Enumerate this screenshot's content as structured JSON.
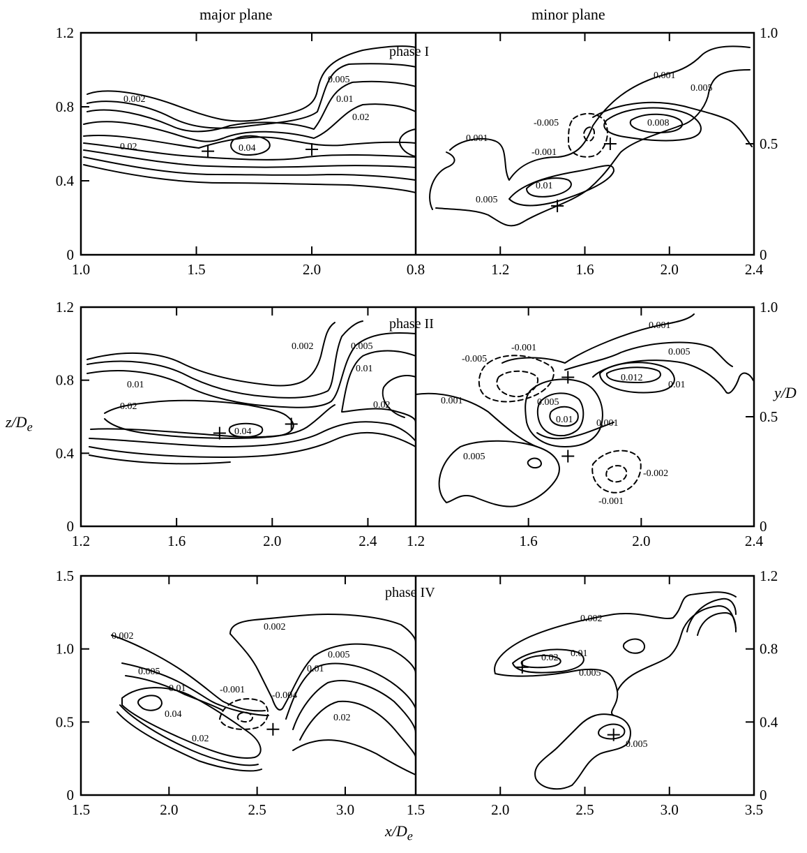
{
  "figure": {
    "major_plane_title": "major plane",
    "minor_plane_title": "minor plane",
    "left_axis_label": "z/D",
    "left_axis_sub": "e",
    "right_axis_label": "y/D",
    "bottom_axis_label": "x/D",
    "bottom_axis_sub": "e"
  },
  "chart_data": [
    {
      "type": "contour",
      "panel": "phase I major plane",
      "phase_label": "phase I",
      "xlim": [
        1.0,
        2.45
      ],
      "ylim": [
        0,
        1.2
      ],
      "x_ticks": [
        "1.0",
        "1.5",
        "2.0"
      ],
      "y_ticks": [
        "0",
        "0.4",
        "0.8",
        "1.2"
      ],
      "contour_levels": [
        "0.002",
        "0.005",
        "0.01",
        "0.02",
        "0.04"
      ],
      "markers": [
        [
          1.55,
          0.56
        ],
        [
          2.0,
          0.57
        ]
      ]
    },
    {
      "type": "contour",
      "panel": "phase I minor plane",
      "xlim": [
        0.8,
        2.4
      ],
      "ylim": [
        0,
        1.0
      ],
      "x_ticks": [
        "0.8",
        "1.2",
        "1.6",
        "2.0",
        "2.4"
      ],
      "y_ticks": [
        "0",
        "0.5",
        "1.0"
      ],
      "contour_levels": [
        "0.001",
        "0.005",
        "0.008",
        "-0.005",
        "-0.001",
        "0.001",
        "0.01",
        "0.005"
      ],
      "markers": [
        [
          1.72,
          0.5
        ],
        [
          1.47,
          0.22
        ]
      ]
    },
    {
      "type": "contour",
      "panel": "phase II major plane",
      "phase_label": "phase II",
      "xlim": [
        1.2,
        2.6
      ],
      "ylim": [
        0,
        1.2
      ],
      "x_ticks": [
        "1.2",
        "1.6",
        "2.0",
        "2.4"
      ],
      "y_ticks": [
        "0",
        "0.4",
        "0.8",
        "1.2"
      ],
      "contour_levels": [
        "0.002",
        "0.005",
        "0.01",
        "0.02",
        "0.01",
        "0.02",
        "0.04"
      ],
      "markers": [
        [
          1.78,
          0.51
        ],
        [
          2.08,
          0.56
        ]
      ]
    },
    {
      "type": "contour",
      "panel": "phase II minor plane",
      "xlim": [
        1.2,
        2.4
      ],
      "ylim": [
        0,
        1.0
      ],
      "x_ticks": [
        "1.2",
        "1.6",
        "2.0",
        "2.4"
      ],
      "y_ticks": [
        "0",
        "0.5",
        "1.0"
      ],
      "contour_levels": [
        "0.001",
        "0.005",
        "0.012",
        "0.01",
        "-0.005",
        "-0.001",
        "0.001",
        "0.005",
        "0.01",
        "0.001",
        "0.005",
        "-0.002",
        "-0.001"
      ],
      "markers": [
        [
          1.74,
          0.68
        ],
        [
          1.74,
          0.32
        ]
      ]
    },
    {
      "type": "contour",
      "panel": "phase IV major plane",
      "phase_label": "phase IV",
      "xlim": [
        1.5,
        3.4
      ],
      "ylim": [
        0,
        1.5
      ],
      "x_ticks": [
        "1.5",
        "2.0",
        "2.5",
        "3.0"
      ],
      "y_ticks": [
        "0",
        "0.5",
        "1.0",
        "1.5"
      ],
      "contour_levels": [
        "0.002",
        "0.002",
        "0.005",
        "0.01",
        "0.005",
        "0.01",
        "0.02",
        "-0.001",
        "-0.004",
        "0.04",
        "0.02"
      ],
      "markers": [
        [
          2.59,
          0.45
        ]
      ]
    },
    {
      "type": "contour",
      "panel": "phase IV minor plane",
      "xlim": [
        1.5,
        3.5
      ],
      "ylim": [
        0,
        1.2
      ],
      "x_ticks": [
        "1.5",
        "2.0",
        "2.5",
        "3.0",
        "3.5"
      ],
      "y_ticks": [
        "0",
        "0.4",
        "0.8",
        "1.2"
      ],
      "contour_levels": [
        "0.002",
        "0.02",
        "0.01",
        "0.005",
        "0.005"
      ],
      "markers": [
        [
          2.13,
          0.7
        ],
        [
          2.67,
          0.33
        ]
      ]
    }
  ]
}
